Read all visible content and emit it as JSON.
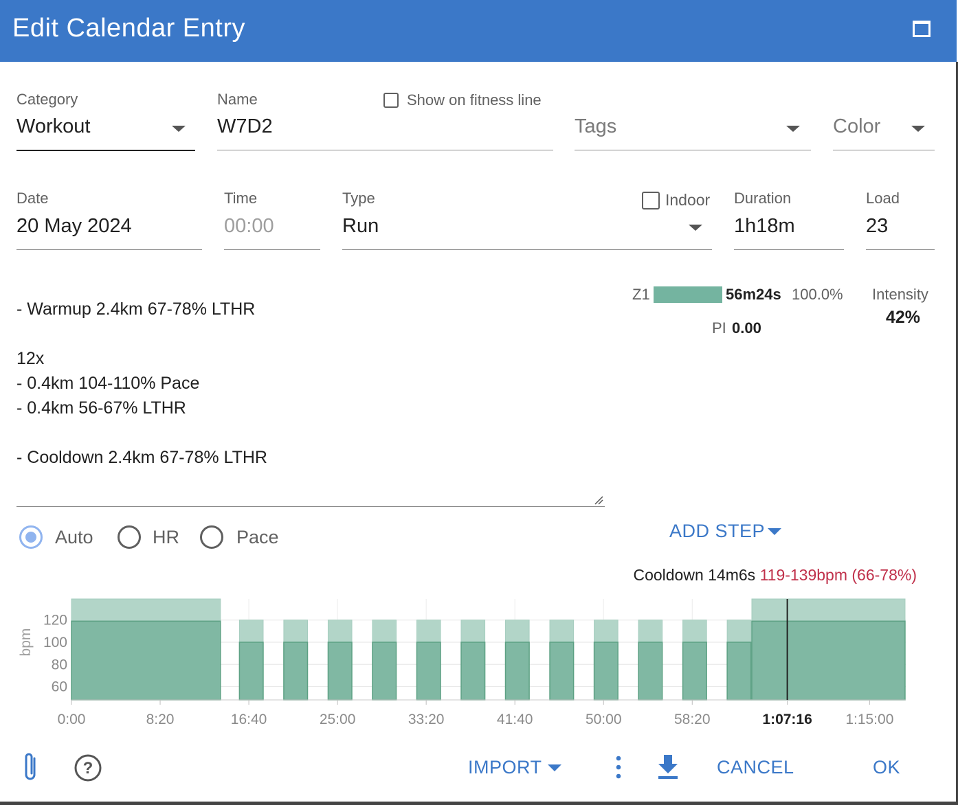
{
  "window": {
    "title": "Edit Calendar Entry",
    "maximize_icon": "maximize-icon"
  },
  "fields": {
    "category": {
      "label": "Category",
      "value": "Workout"
    },
    "name": {
      "label": "Name",
      "value": "W7D2"
    },
    "show_on_fitness_line": {
      "label": "Show on fitness line",
      "checked": false
    },
    "tags": {
      "placeholder": "Tags"
    },
    "color": {
      "placeholder": "Color"
    },
    "date": {
      "label": "Date",
      "value": "20 May 2024"
    },
    "time": {
      "label": "Time",
      "value": "00:00"
    },
    "type": {
      "label": "Type",
      "value": "Run"
    },
    "indoor": {
      "label": "Indoor",
      "checked": false
    },
    "duration": {
      "label": "Duration",
      "value": "1h18m"
    },
    "load": {
      "label": "Load",
      "value": "23"
    }
  },
  "zones": {
    "z1": {
      "label": "Z1",
      "time": "56m24s",
      "percent": "100.0%",
      "fill_fraction": 1.0,
      "color": "#74b4a0"
    },
    "pi": {
      "label": "PI",
      "value": "0.00"
    },
    "intensity": {
      "label": "Intensity",
      "value": "42%"
    }
  },
  "description": "- Warmup 2.4km 67-78% LTHR\n\n12x\n- 0.4km 104-110% Pace\n- 0.4km 56-67% LTHR\n\n- Cooldown 2.4km 67-78% LTHR",
  "target_mode": {
    "options": [
      {
        "label": "Auto",
        "selected": true
      },
      {
        "label": "HR",
        "selected": false
      },
      {
        "label": "Pace",
        "selected": false
      }
    ]
  },
  "add_step_label": "ADD STEP",
  "hover_info": {
    "step": "Cooldown 14m6s",
    "range": "119-139bpm (66-78%)",
    "range_color": "#c0304a"
  },
  "chart_data": {
    "type": "bar",
    "ylabel": "bpm",
    "yticks": [
      60,
      80,
      100,
      120
    ],
    "ylim": [
      48,
      139
    ],
    "x_unit": "seconds",
    "xlim": [
      0,
      4704
    ],
    "xticks": [
      {
        "t": 0,
        "label": "0:00"
      },
      {
        "t": 500,
        "label": "8:20"
      },
      {
        "t": 1000,
        "label": "16:40"
      },
      {
        "t": 1500,
        "label": "25:00"
      },
      {
        "t": 2000,
        "label": "33:20"
      },
      {
        "t": 2500,
        "label": "41:40"
      },
      {
        "t": 3000,
        "label": "50:00"
      },
      {
        "t": 3500,
        "label": "58:20"
      },
      {
        "t": 4036,
        "label": "1:07:16",
        "bold": true
      },
      {
        "t": 4500,
        "label": "1:15:00"
      }
    ],
    "cursor_t": 4036,
    "steps": [
      {
        "start": 0,
        "end": 840,
        "low": 119,
        "high": 139
      },
      {
        "start": 947,
        "end": 1081,
        "low": 100,
        "high": 120
      },
      {
        "start": 1197,
        "end": 1331,
        "low": 100,
        "high": 120
      },
      {
        "start": 1447,
        "end": 1581,
        "low": 100,
        "high": 120
      },
      {
        "start": 1697,
        "end": 1831,
        "low": 100,
        "high": 120
      },
      {
        "start": 1947,
        "end": 2081,
        "low": 100,
        "high": 120
      },
      {
        "start": 2197,
        "end": 2331,
        "low": 100,
        "high": 120
      },
      {
        "start": 2447,
        "end": 2581,
        "low": 100,
        "high": 120
      },
      {
        "start": 2697,
        "end": 2831,
        "low": 100,
        "high": 120
      },
      {
        "start": 2947,
        "end": 3081,
        "low": 100,
        "high": 120
      },
      {
        "start": 3197,
        "end": 3331,
        "low": 100,
        "high": 120
      },
      {
        "start": 3447,
        "end": 3581,
        "low": 100,
        "high": 120
      },
      {
        "start": 3697,
        "end": 3831,
        "low": 100,
        "high": 120
      },
      {
        "start": 3836,
        "end": 4700,
        "low": 119,
        "high": 139
      }
    ],
    "colors": {
      "low": "#80b8a3",
      "high": "#b2d5c8",
      "stroke": "#5da184"
    }
  },
  "footer": {
    "attach_icon": "paperclip-icon",
    "help_icon": "help-icon",
    "import_label": "IMPORT",
    "more_icon": "more-vertical-icon",
    "download_icon": "download-icon",
    "cancel_label": "CANCEL",
    "ok_label": "OK"
  }
}
